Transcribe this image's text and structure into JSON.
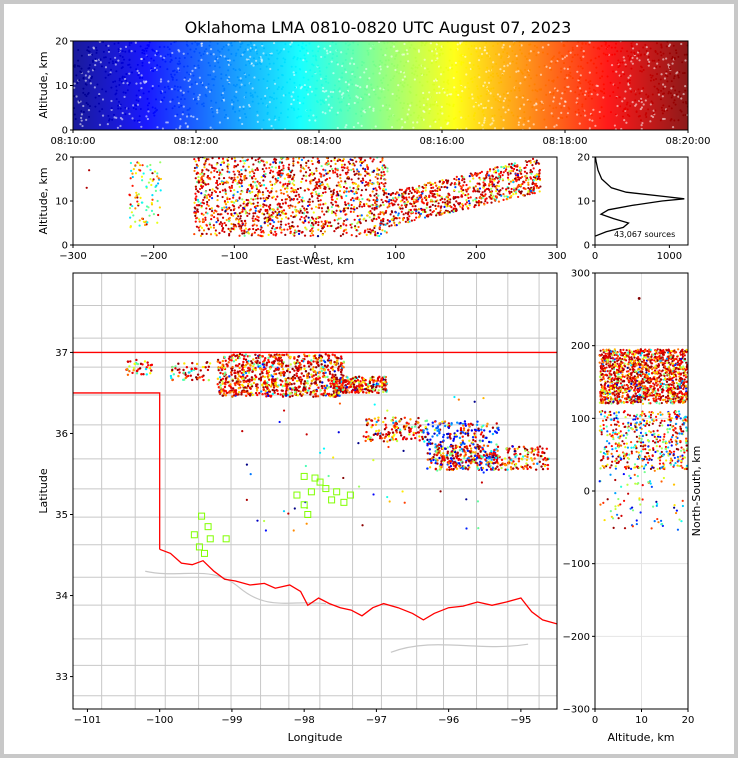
{
  "chart_data": [
    {
      "type": "scatter",
      "panel": "altitude-vs-time",
      "title": "Oklahoma LMA 0810-0820 UTC August 07, 2023",
      "xlabel": "",
      "ylabel": "Altitude, km",
      "x_ticks": [
        "08:10:00",
        "08:12:00",
        "08:14:00",
        "08:16:00",
        "08:18:00",
        "08:20:00"
      ],
      "xlim": [
        "08:10:00",
        "08:20:00"
      ],
      "ylim": [
        0,
        20
      ],
      "y_ticks": [
        0,
        10,
        20
      ],
      "color_encoding": "time (blue to dark red)",
      "colors": [
        "#00008f",
        "#0000ff",
        "#0080ff",
        "#00ffff",
        "#80ff80",
        "#ffff00",
        "#ff8000",
        "#ff0000",
        "#800000"
      ]
    },
    {
      "type": "scatter",
      "panel": "altitude-vs-east-west",
      "xlabel": "East-West, km",
      "ylabel": "Altitude, km",
      "xlim": [
        -300,
        300
      ],
      "x_ticks": [
        -300,
        -200,
        -100,
        0,
        100,
        200,
        300
      ],
      "ylim": [
        0,
        20
      ],
      "y_ticks": [
        0,
        10,
        20
      ],
      "clusters": [
        {
          "x_range": [
            -230,
            -190
          ],
          "alt_range": [
            4,
            19
          ]
        },
        {
          "x_range": [
            -150,
            90
          ],
          "alt_range": [
            2,
            20
          ]
        },
        {
          "x_range": [
            90,
            280
          ],
          "alt_range": [
            4,
            20
          ]
        }
      ]
    },
    {
      "type": "line",
      "panel": "source-count-histogram",
      "xlim": [
        0,
        1250
      ],
      "x_ticks": [
        0,
        1000
      ],
      "ylim": [
        0,
        20
      ],
      "y_ticks": [
        0,
        10,
        20
      ],
      "annotation": "43,067 sources",
      "profile": [
        [
          2,
          0
        ],
        [
          3,
          150
        ],
        [
          4,
          380
        ],
        [
          5,
          450
        ],
        [
          6,
          250
        ],
        [
          7,
          80
        ],
        [
          8,
          180
        ],
        [
          9,
          500
        ],
        [
          10,
          900
        ],
        [
          10.5,
          1200
        ],
        [
          11,
          950
        ],
        [
          12,
          420
        ],
        [
          13,
          220
        ],
        [
          15,
          90
        ],
        [
          17,
          40
        ],
        [
          19,
          15
        ],
        [
          20,
          5
        ]
      ]
    },
    {
      "type": "scatter",
      "panel": "plan-view-map",
      "xlabel": "Longitude",
      "ylabel": "Latitude",
      "xlim": [
        -101.2,
        -94.5
      ],
      "x_ticks": [
        -101,
        -100,
        -99,
        -98,
        -97,
        -96,
        -95
      ],
      "ylim": [
        32.6,
        37.98
      ],
      "y_ticks": [
        33,
        34,
        35,
        36,
        37
      ],
      "state_border_color": "#ff0000",
      "county_line_color": "#c8c8c8",
      "station_marker_color": "#80ff00",
      "stations": [
        [
          -99.42,
          34.98
        ],
        [
          -99.33,
          34.85
        ],
        [
          -99.52,
          34.75
        ],
        [
          -99.3,
          34.7
        ],
        [
          -99.45,
          34.6
        ],
        [
          -99.38,
          34.52
        ],
        [
          -99.08,
          34.7
        ],
        [
          -97.85,
          35.45
        ],
        [
          -98.0,
          35.47
        ],
        [
          -97.78,
          35.4
        ],
        [
          -97.7,
          35.32
        ],
        [
          -97.55,
          35.28
        ],
        [
          -97.36,
          35.24
        ],
        [
          -97.9,
          35.28
        ],
        [
          -98.1,
          35.24
        ],
        [
          -97.45,
          35.15
        ],
        [
          -97.95,
          35.0
        ],
        [
          -98.0,
          35.12
        ],
        [
          -97.62,
          35.18
        ]
      ],
      "clusters": [
        {
          "lon": [
            -100.5,
            -100.1
          ],
          "lat": [
            36.72,
            36.92
          ]
        },
        {
          "lon": [
            -99.85,
            -99.3
          ],
          "lat": [
            36.65,
            36.88
          ]
        },
        {
          "lon": [
            -99.2,
            -97.45
          ],
          "lat": [
            36.45,
            36.98
          ]
        },
        {
          "lon": [
            -97.6,
            -96.85
          ],
          "lat": [
            36.5,
            36.7
          ]
        },
        {
          "lon": [
            -97.15,
            -96.3
          ],
          "lat": [
            35.9,
            36.2
          ]
        },
        {
          "lon": [
            -96.3,
            -95.3
          ],
          "lat": [
            35.55,
            36.15
          ]
        },
        {
          "lon": [
            -96.2,
            -94.6
          ],
          "lat": [
            35.55,
            35.85
          ]
        }
      ]
    },
    {
      "type": "scatter",
      "panel": "north-south-vs-altitude",
      "xlabel": "Altitude, km",
      "ylabel": "North-South, km",
      "xlim": [
        0,
        20
      ],
      "x_ticks": [
        0,
        10,
        20
      ],
      "ylim": [
        -300,
        300
      ],
      "y_ticks": [
        -300,
        -200,
        -100,
        0,
        100,
        200,
        300
      ],
      "clusters": [
        {
          "ns_range": [
            120,
            195
          ],
          "alt_range": [
            1,
            20
          ]
        },
        {
          "ns_range": [
            30,
            110
          ],
          "alt_range": [
            1,
            20
          ]
        }
      ]
    }
  ]
}
